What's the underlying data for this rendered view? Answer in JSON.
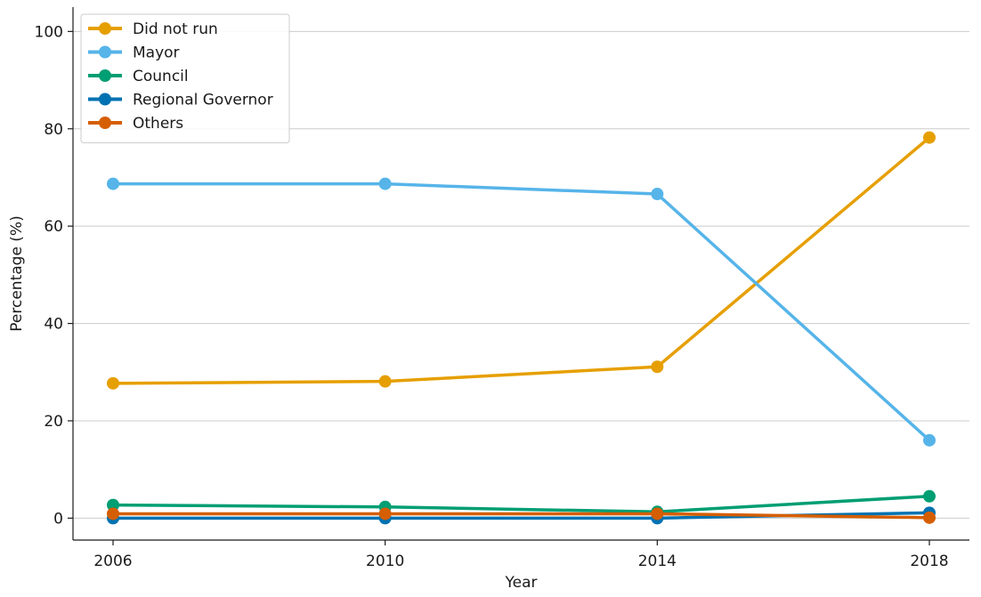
{
  "chart_data": {
    "type": "line",
    "xlabel": "Year",
    "ylabel": "Percentage (%)",
    "x": [
      2006,
      2010,
      2014,
      2018
    ],
    "x_tick_labels": [
      "2006",
      "2010",
      "2014",
      "2018"
    ],
    "ylim": [
      -4.5,
      105
    ],
    "y_ticks": [
      0,
      20,
      40,
      60,
      80,
      100
    ],
    "y_tick_labels": [
      "0",
      "20",
      "40",
      "60",
      "80",
      "100"
    ],
    "grid": "y",
    "legend": "top-left",
    "series": [
      {
        "name": "Did not run",
        "color": "#E69F00",
        "values": [
          27.7,
          28.1,
          31.1,
          78.2
        ]
      },
      {
        "name": "Mayor",
        "color": "#56B4E9",
        "values": [
          68.7,
          68.7,
          66.6,
          16.0
        ]
      },
      {
        "name": "Council",
        "color": "#009E73",
        "values": [
          2.7,
          2.3,
          1.3,
          4.5
        ]
      },
      {
        "name": "Regional Governor",
        "color": "#0072B2",
        "values": [
          0.0,
          0.0,
          0.0,
          1.1
        ]
      },
      {
        "name": "Others",
        "color": "#D55E00",
        "values": [
          0.9,
          0.9,
          0.9,
          0.1
        ]
      }
    ]
  }
}
